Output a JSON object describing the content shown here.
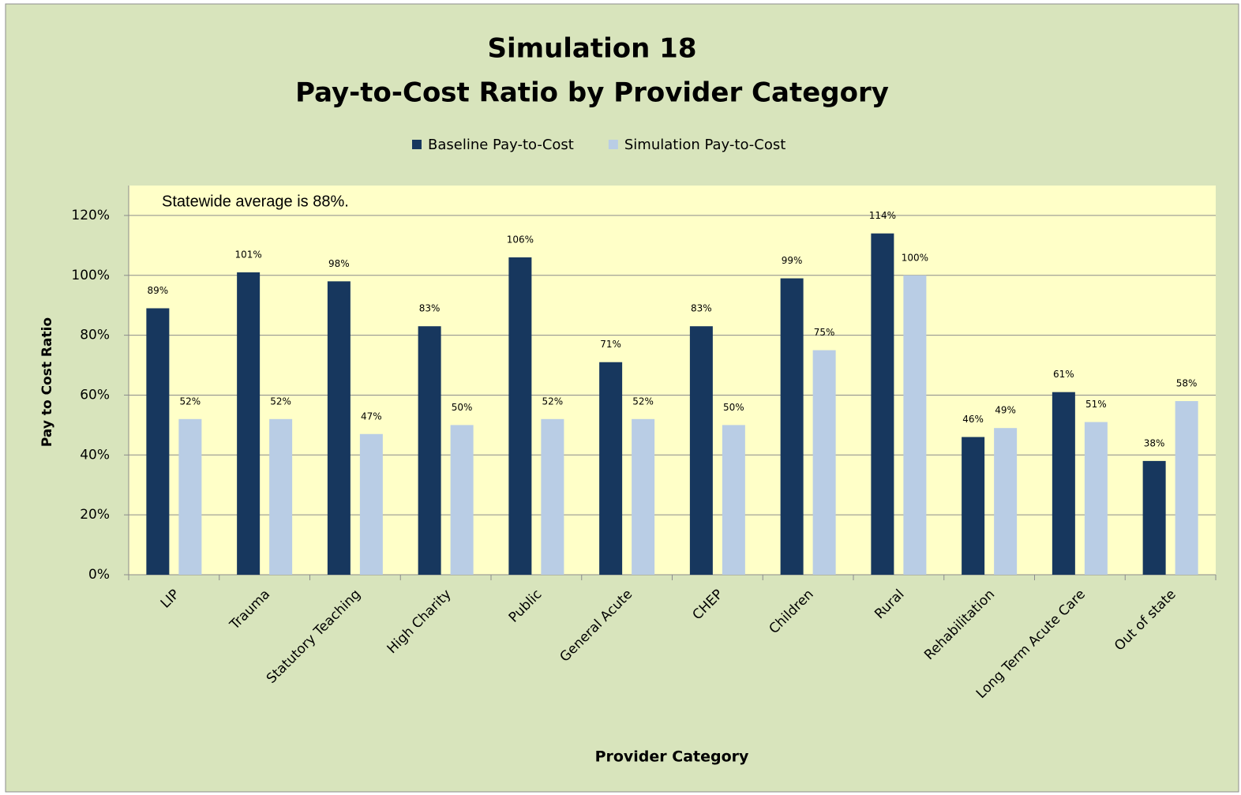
{
  "chart_data": {
    "type": "bar",
    "title": "Simulation 18",
    "subtitle": "Pay-to-Cost Ratio by Provider Category",
    "x_label": "Provider Category",
    "y_label": "Pay to Cost Ratio",
    "annotation": "Statewide average  is 88%.",
    "categories": [
      "LIP",
      "Trauma",
      "Statutory Teaching",
      "High Charity",
      "Public",
      "General Acute",
      "CHEP",
      "Children",
      "Rural",
      "Rehabilitation",
      "Long Term Acute Care",
      "Out of state"
    ],
    "series": [
      {
        "name": "Baseline Pay-to-Cost",
        "color": "#17375e",
        "values": [
          89,
          101,
          98,
          83,
          106,
          71,
          83,
          99,
          114,
          46,
          61,
          38
        ],
        "value_labels": [
          "89%",
          "101%",
          "98%",
          "83%",
          "106%",
          "71%",
          "83%",
          "99%",
          "114%",
          "46%",
          "61%",
          "38%"
        ]
      },
      {
        "name": "Simulation Pay-to-Cost",
        "color": "#b9cde5",
        "values": [
          52,
          52,
          47,
          50,
          52,
          52,
          50,
          75,
          100,
          49,
          51,
          58
        ],
        "value_labels": [
          "52%",
          "52%",
          "47%",
          "50%",
          "52%",
          "52%",
          "50%",
          "75%",
          "100%",
          "49%",
          "51%",
          "58%"
        ]
      }
    ],
    "ylim": [
      0,
      130
    ],
    "yticks": [
      {
        "value": 0,
        "label": "0%"
      },
      {
        "value": 20,
        "label": "20%"
      },
      {
        "value": 40,
        "label": "40%"
      },
      {
        "value": 60,
        "label": "60%"
      },
      {
        "value": 80,
        "label": "80%"
      },
      {
        "value": 100,
        "label": "100%"
      },
      {
        "value": 120,
        "label": "120%"
      }
    ],
    "grid": true,
    "legend": "top"
  }
}
